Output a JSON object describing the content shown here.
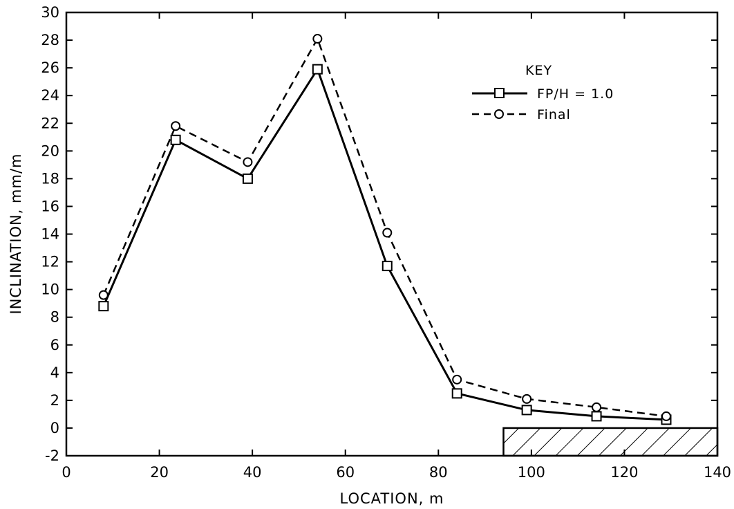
{
  "chart_data": {
    "type": "line",
    "xlabel": "LOCATION, m",
    "ylabel": "INCLINATION, mm/m",
    "xlim": [
      0,
      140
    ],
    "ylim": [
      -2,
      30
    ],
    "xticks": [
      "0",
      "20",
      "40",
      "60",
      "80",
      "100",
      "120",
      "140"
    ],
    "yticks": [
      "-2",
      "0",
      "2",
      "4",
      "6",
      "8",
      "10",
      "12",
      "14",
      "16",
      "18",
      "20",
      "22",
      "24",
      "26",
      "28",
      "30"
    ],
    "x": [
      8,
      23.5,
      39,
      54,
      69,
      84,
      99,
      114,
      129
    ],
    "series": [
      {
        "name": "FP/H = 1.0",
        "marker": "square",
        "line": "solid",
        "values": [
          8.8,
          20.8,
          18.0,
          25.9,
          11.7,
          2.5,
          1.3,
          0.85,
          0.6
        ]
      },
      {
        "name": "Final",
        "marker": "circle",
        "line": "dashed",
        "values": [
          9.6,
          21.8,
          19.2,
          28.1,
          14.1,
          3.5,
          2.1,
          1.5,
          0.85
        ]
      }
    ],
    "legend": {
      "title": "KEY",
      "placement": "upper-right"
    },
    "annotations": [
      {
        "type": "hatched-region",
        "x_range": [
          94,
          140
        ],
        "y_range": [
          -2,
          0
        ]
      }
    ],
    "grid": false
  }
}
